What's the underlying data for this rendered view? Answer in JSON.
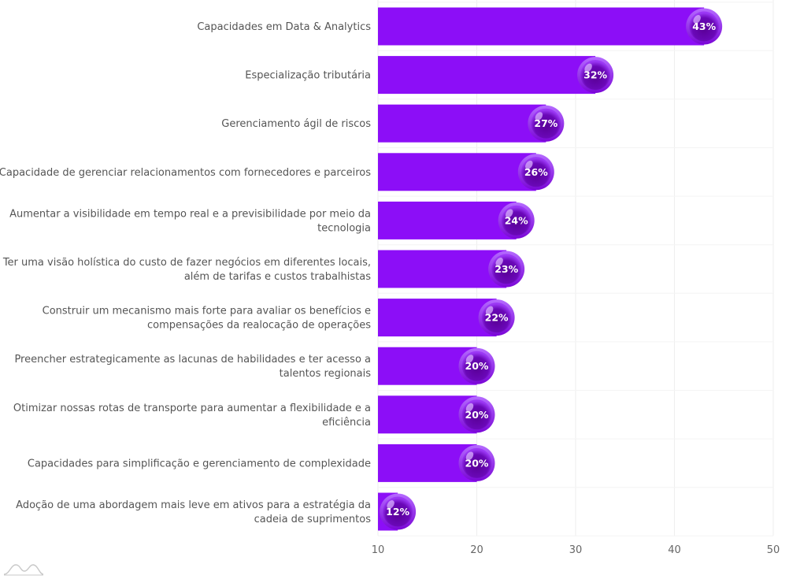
{
  "chart_data": {
    "type": "bar",
    "orientation": "horizontal",
    "categories": [
      "Capacidades em Data & Analytics",
      "Especialização tributária",
      "Gerenciamento ágil de riscos",
      "Capacidade de gerenciar relacionamentos com fornecedores e parceiros",
      "Aumentar a visibilidade em tempo real e a previsibilidade por meio da tecnologia",
      "Ter uma visão holística do custo de fazer negócios em diferentes locais, além de tarifas e custos trabalhistas",
      "Construir um mecanismo mais forte para avaliar os benefícios e compensações da realocação de operações",
      "Preencher estrategicamente as lacunas de habilidades e ter acesso a talentos regionais",
      "Otimizar nossas rotas de transporte para aumentar a flexibilidade e a eficiência",
      "Capacidades para simplificação e gerenciamento de complexidade",
      "Adoção de uma abordagem mais leve em ativos para a estratégia da cadeia de suprimentos"
    ],
    "label_lines": [
      [
        "Capacidades em Data & Analytics"
      ],
      [
        "Especialização tributária"
      ],
      [
        "Gerenciamento ágil de riscos"
      ],
      [
        "Capacidade de gerenciar relacionamentos com fornecedores e parceiros"
      ],
      [
        "Aumentar a visibilidade em tempo real e a previsibilidade por meio da",
        "tecnologia"
      ],
      [
        "Ter uma visão holística do custo de fazer negócios em diferentes locais,",
        "além de tarifas e custos trabalhistas"
      ],
      [
        "Construir um mecanismo mais forte para avaliar os benefícios e",
        "compensações da realocação de operações"
      ],
      [
        "Preencher estrategicamente as lacunas de habilidades e ter acesso a",
        "talentos regionais"
      ],
      [
        "Otimizar nossas rotas de transporte para aumentar a flexibilidade e a",
        "eficiência"
      ],
      [
        "Capacidades para simplificação e gerenciamento de complexidade"
      ],
      [
        "Adoção de uma abordagem mais leve em ativos para a estratégia da",
        "cadeia de suprimentos"
      ]
    ],
    "values": [
      43,
      32,
      27,
      26,
      24,
      23,
      22,
      20,
      20,
      20,
      12
    ],
    "value_labels": [
      "43%",
      "32%",
      "27%",
      "26%",
      "24%",
      "23%",
      "22%",
      "20%",
      "20%",
      "20%",
      "12%"
    ],
    "xlim": [
      10,
      50
    ],
    "xticks": [
      10,
      20,
      30,
      40,
      50
    ],
    "title": "",
    "xlabel": "",
    "ylabel": "",
    "grid": true,
    "legend": "none"
  },
  "colors": {
    "bar": "#8c0ef7",
    "bubble_ring": "#8a12e8",
    "bubble_dark": "#5a0098",
    "bubble_light": "#b26cff",
    "grid": "#eeeeee",
    "axis_text": "#666666",
    "label_text": "#555555"
  },
  "icons": {
    "watermark": "chart-logo-icon"
  }
}
